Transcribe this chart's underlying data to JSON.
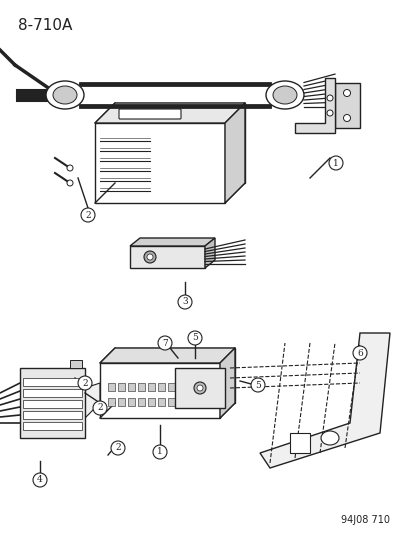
{
  "title_label": "8-710A",
  "footer_label": "94J08 710",
  "background_color": "#ffffff",
  "line_color": "#222222",
  "title_fontsize": 11,
  "footer_fontsize": 7,
  "fig_width": 4.14,
  "fig_height": 5.33,
  "dpi": 100,
  "callout_numbers": [
    1,
    2,
    3,
    4,
    5,
    6,
    7
  ],
  "callout_circle_color": "#ffffff",
  "callout_stroke": "#222222"
}
